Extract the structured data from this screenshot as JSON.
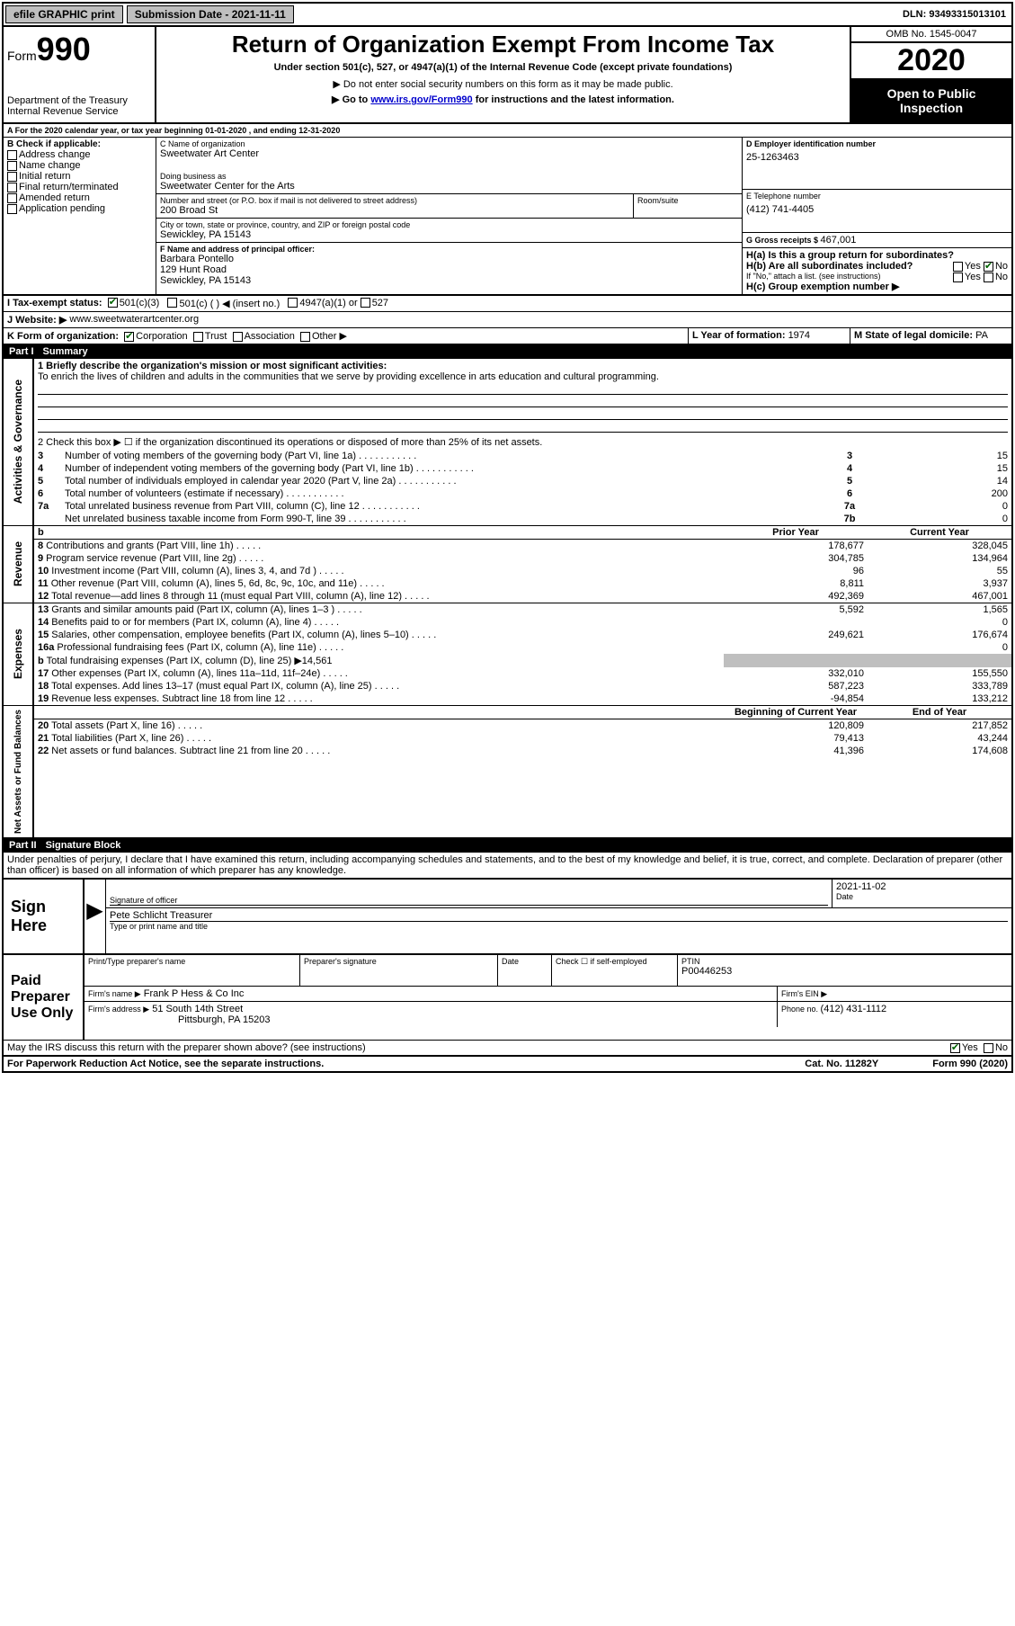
{
  "topbar": {
    "efile": "efile GRAPHIC print",
    "submission_label": "Submission Date - 2021-11-11",
    "dln": "DLN: 93493315013101"
  },
  "header": {
    "form_label": "Form",
    "form_number": "990",
    "dept": "Department of the Treasury\nInternal Revenue Service",
    "title": "Return of Organization Exempt From Income Tax",
    "subtitle": "Under section 501(c), 527, or 4947(a)(1) of the Internal Revenue Code (except private foundations)",
    "note1": "▶ Do not enter social security numbers on this form as it may be made public.",
    "note2_prefix": "▶ Go to ",
    "note2_link": "www.irs.gov/Form990",
    "note2_suffix": " for instructions and the latest information.",
    "omb": "OMB No. 1545-0047",
    "year": "2020",
    "open_public": "Open to Public Inspection"
  },
  "period": "A For the 2020 calendar year, or tax year beginning 01-01-2020    , and ending 12-31-2020",
  "boxB": {
    "label": "B Check if applicable:",
    "items": [
      "Address change",
      "Name change",
      "Initial return",
      "Final return/terminated",
      "Amended return",
      "Application pending"
    ]
  },
  "boxC": {
    "name_label": "C Name of organization",
    "name": "Sweetwater Art Center",
    "dba_label": "Doing business as",
    "dba": "Sweetwater Center for the Arts",
    "street_label": "Number and street (or P.O. box if mail is not delivered to street address)",
    "street": "200 Broad St",
    "room_label": "Room/suite",
    "city_label": "City or town, state or province, country, and ZIP or foreign postal code",
    "city": "Sewickley, PA  15143"
  },
  "boxD": {
    "label": "D Employer identification number",
    "value": "25-1263463"
  },
  "boxE": {
    "label": "E Telephone number",
    "value": "(412) 741-4405"
  },
  "boxG": {
    "label": "G Gross receipts $ ",
    "value": "467,001"
  },
  "boxF": {
    "label": "F  Name and address of principal officer:",
    "name": "Barbara Pontello",
    "street": "129 Hunt Road",
    "city": "Sewickley, PA  15143"
  },
  "boxH": {
    "a_label": "H(a)  Is this a group return for subordinates?",
    "a_yes": "Yes",
    "a_no": "No",
    "b_label": "H(b)  Are all subordinates included?",
    "b_note": "If \"No,\" attach a list. (see instructions)",
    "c_label": "H(c)  Group exemption number ▶"
  },
  "taxexempt": {
    "label": "I    Tax-exempt status:",
    "opt1": "501(c)(3)",
    "opt2": "501(c) (   ) ◀ (insert no.)",
    "opt3": "4947(a)(1) or",
    "opt4": "527"
  },
  "website": {
    "label": "J    Website: ▶",
    "value": "www.sweetwaterartcenter.org"
  },
  "boxK": {
    "label": "K Form of organization:",
    "opts": [
      "Corporation",
      "Trust",
      "Association",
      "Other ▶"
    ]
  },
  "boxL": {
    "label": "L Year of formation: ",
    "value": "1974"
  },
  "boxM": {
    "label": "M State of legal domicile: ",
    "value": "PA"
  },
  "part1": {
    "label": "Part I",
    "title": "Summary",
    "side_label_1": "Activities & Governance",
    "side_label_2": "Revenue",
    "side_label_3": "Expenses",
    "side_label_4": "Net Assets or Fund Balances",
    "line1_label": "1  Briefly describe the organization's mission or most significant activities:",
    "line1_text": "To enrich the lives of children and adults in the communities that we serve by providing excellence in arts education and cultural programming.",
    "line2": "2    Check this box ▶ ☐  if the organization discontinued its operations or disposed of more than 25% of its net assets.",
    "rows": [
      {
        "n": "3",
        "t": "Number of voting members of the governing body (Part VI, line 1a)",
        "c": "3",
        "v": "15"
      },
      {
        "n": "4",
        "t": "Number of independent voting members of the governing body (Part VI, line 1b)",
        "c": "4",
        "v": "15"
      },
      {
        "n": "5",
        "t": "Total number of individuals employed in calendar year 2020 (Part V, line 2a)",
        "c": "5",
        "v": "14"
      },
      {
        "n": "6",
        "t": "Total number of volunteers (estimate if necessary)",
        "c": "6",
        "v": "200"
      },
      {
        "n": "7a",
        "t": "Total unrelated business revenue from Part VIII, column (C), line 12",
        "c": "7a",
        "v": "0"
      },
      {
        "n": "",
        "t": "Net unrelated business taxable income from Form 990-T, line 39",
        "c": "7b",
        "v": "0"
      }
    ],
    "prior_label": "Prior Year",
    "curr_label": "Current Year",
    "rev_rows": [
      {
        "n": "8",
        "t": "Contributions and grants (Part VIII, line 1h)",
        "p": "178,677",
        "c": "328,045"
      },
      {
        "n": "9",
        "t": "Program service revenue (Part VIII, line 2g)",
        "p": "304,785",
        "c": "134,964"
      },
      {
        "n": "10",
        "t": "Investment income (Part VIII, column (A), lines 3, 4, and 7d )",
        "p": "96",
        "c": "55"
      },
      {
        "n": "11",
        "t": "Other revenue (Part VIII, column (A), lines 5, 6d, 8c, 9c, 10c, and 11e)",
        "p": "8,811",
        "c": "3,937"
      },
      {
        "n": "12",
        "t": "Total revenue—add lines 8 through 11 (must equal Part VIII, column (A), line 12)",
        "p": "492,369",
        "c": "467,001"
      }
    ],
    "exp_rows": [
      {
        "n": "13",
        "t": "Grants and similar amounts paid (Part IX, column (A), lines 1–3 )",
        "p": "5,592",
        "c": "1,565"
      },
      {
        "n": "14",
        "t": "Benefits paid to or for members (Part IX, column (A), line 4)",
        "p": "",
        "c": "0"
      },
      {
        "n": "15",
        "t": "Salaries, other compensation, employee benefits (Part IX, column (A), lines 5–10)",
        "p": "249,621",
        "c": "176,674"
      },
      {
        "n": "16a",
        "t": "Professional fundraising fees (Part IX, column (A), line 11e)",
        "p": "",
        "c": "0"
      },
      {
        "n": "b",
        "t": "Total fundraising expenses (Part IX, column (D), line 25) ▶14,561",
        "p": "GRAY",
        "c": "GRAY"
      },
      {
        "n": "17",
        "t": "Other expenses (Part IX, column (A), lines 11a–11d, 11f–24e)",
        "p": "332,010",
        "c": "155,550"
      },
      {
        "n": "18",
        "t": "Total expenses. Add lines 13–17 (must equal Part IX, column (A), line 25)",
        "p": "587,223",
        "c": "333,789"
      },
      {
        "n": "19",
        "t": "Revenue less expenses. Subtract line 18 from line 12",
        "p": "-94,854",
        "c": "133,212"
      }
    ],
    "bal_hdr_p": "Beginning of Current Year",
    "bal_hdr_c": "End of Year",
    "bal_rows": [
      {
        "n": "20",
        "t": "Total assets (Part X, line 16)",
        "p": "120,809",
        "c": "217,852"
      },
      {
        "n": "21",
        "t": "Total liabilities (Part X, line 26)",
        "p": "79,413",
        "c": "43,244"
      },
      {
        "n": "22",
        "t": "Net assets or fund balances. Subtract line 21 from line 20",
        "p": "41,396",
        "c": "174,608"
      }
    ]
  },
  "part2": {
    "label": "Part II",
    "title": "Signature Block",
    "declaration": "Under penalties of perjury, I declare that I have examined this return, including accompanying schedules and statements, and to the best of my knowledge and belief, it is true, correct, and complete. Declaration of preparer (other than officer) is based on all information of which preparer has any knowledge.",
    "sign_here": "Sign Here",
    "sig_officer_label": "Signature of officer",
    "sig_date": "2021-11-02",
    "sig_date_label": "Date",
    "officer_name": "Pete Schlicht  Treasurer",
    "officer_name_label": "Type or print name and title",
    "paid_label": "Paid Preparer Use Only",
    "prep_name_label": "Print/Type preparer's name",
    "prep_sig_label": "Preparer's signature",
    "date_label": "Date",
    "check_self": "Check ☐  if self-employed",
    "ptin_label": "PTIN",
    "ptin": "P00446253",
    "firm_name_label": "Firm's name    ▶",
    "firm_name": "Frank P Hess & Co Inc",
    "firm_ein_label": "Firm's EIN ▶",
    "firm_addr_label": "Firm's address ▶",
    "firm_addr1": "51 South 14th Street",
    "firm_addr2": "Pittsburgh, PA  15203",
    "phone_label": "Phone no. ",
    "phone": "(412) 431-1112",
    "discuss": "May the IRS discuss this return with the preparer shown above? (see instructions)",
    "discuss_yes": "Yes",
    "discuss_no": "No"
  },
  "footer": {
    "left": "For Paperwork Reduction Act Notice, see the separate instructions.",
    "mid": "Cat. No. 11282Y",
    "right": "Form 990 (2020)"
  }
}
